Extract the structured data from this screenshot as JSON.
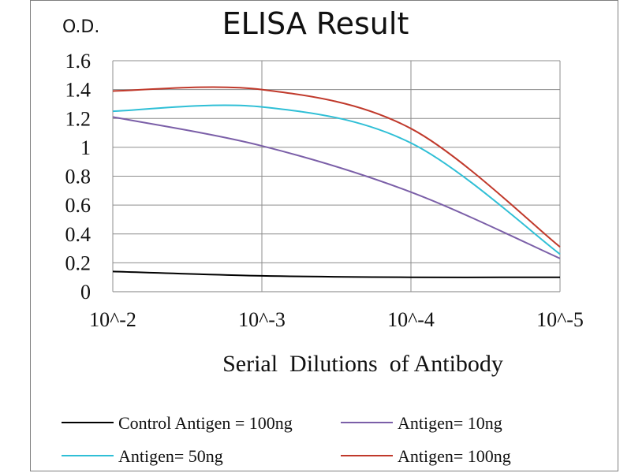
{
  "chart_data": {
    "type": "line",
    "title": "ELISA Result",
    "ylabel": "O.D.",
    "xlabel": "Serial  Dilutions  of Antibody",
    "categories": [
      "10^-2",
      "10^-3",
      "10^-4",
      "10^-5"
    ],
    "yticks": [
      "0",
      "0.2",
      "0.4",
      "0.6",
      "0.8",
      "1",
      "1.2",
      "1.4",
      "1.6"
    ],
    "ylim": [
      0,
      1.6
    ],
    "grid": true,
    "legend_position": "bottom",
    "series": [
      {
        "name": "Control Antigen = 100ng",
        "color": "#000000",
        "values": [
          0.14,
          0.11,
          0.1,
          0.1
        ]
      },
      {
        "name": "Antigen= 10ng",
        "color": "#7b5fa8",
        "values": [
          1.21,
          1.01,
          0.69,
          0.23
        ]
      },
      {
        "name": "Antigen= 50ng",
        "color": "#2fbfd6",
        "values": [
          1.25,
          1.28,
          1.03,
          0.26
        ]
      },
      {
        "name": "Antigen= 100ng",
        "color": "#c0392b",
        "values": [
          1.39,
          1.4,
          1.13,
          0.31
        ]
      }
    ]
  }
}
